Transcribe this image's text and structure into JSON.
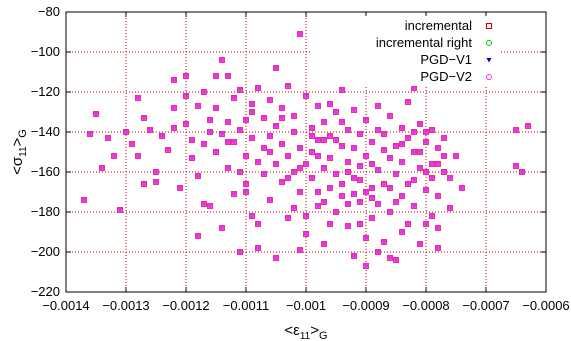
{
  "chart_data": {
    "type": "scatter",
    "title": "",
    "xlabel": {
      "base": "<ε",
      "sub": "11",
      "close": ">",
      "outer_sub": "G"
    },
    "ylabel": {
      "base": "<σ",
      "sub": "11",
      "close": ">",
      "outer_sub": "G"
    },
    "xlim": [
      -0.0014,
      -0.0006
    ],
    "ylim": [
      -220,
      -80
    ],
    "xticks": [
      -0.0014,
      -0.0013,
      -0.0012,
      -0.0011,
      -0.001,
      -0.0009,
      -0.0008,
      -0.0007,
      -0.0006
    ],
    "xtick_labels": [
      "−0.0014",
      "−0.0013",
      "−0.0012",
      "−0.0011",
      "−0.001",
      "−0.0009",
      "−0.0008",
      "−0.0007",
      "−0.0006"
    ],
    "yticks": [
      -220,
      -200,
      -180,
      -160,
      -140,
      -120,
      -100,
      -80
    ],
    "ytick_labels": [
      "−220",
      "−200",
      "−180",
      "−160",
      "−140",
      "−120",
      "−100",
      "−80"
    ],
    "grid": true,
    "legend_position": "top-right",
    "series": [
      {
        "name": "incremental",
        "color": "#cc0000",
        "marker": "square"
      },
      {
        "name": "incremental right",
        "color": "#00cc00",
        "marker": "circle"
      },
      {
        "name": "PGD−V1",
        "color": "#0000cc",
        "marker": "triangle-down"
      },
      {
        "name": "PGD−V2",
        "color": "#ff33ff",
        "marker": "square"
      }
    ],
    "note_series": "All four series overlap; points listed once as shared x/y values.",
    "points": [
      [
        -0.00137,
        -174
      ],
      [
        -0.00136,
        -141
      ],
      [
        -0.00135,
        -131
      ],
      [
        -0.00134,
        -158
      ],
      [
        -0.00133,
        -143
      ],
      [
        -0.00132,
        -152
      ],
      [
        -0.00131,
        -179
      ],
      [
        -0.0013,
        -140
      ],
      [
        -0.00129,
        -146
      ],
      [
        -0.00128,
        -123
      ],
      [
        -0.00128,
        -152
      ],
      [
        -0.00127,
        -133
      ],
      [
        -0.00126,
        -139
      ],
      [
        -0.00125,
        -165
      ],
      [
        -0.00124,
        -142
      ],
      [
        -0.00123,
        -149
      ],
      [
        -0.00122,
        -114
      ],
      [
        -0.00122,
        -138
      ],
      [
        -0.00121,
        -168
      ],
      [
        -0.0012,
        -136
      ],
      [
        -0.0012,
        -122
      ],
      [
        -0.00119,
        -144
      ],
      [
        -0.00118,
        -127
      ],
      [
        -0.00118,
        -162
      ],
      [
        -0.00117,
        -146
      ],
      [
        -0.00117,
        -120
      ],
      [
        -0.00116,
        -134
      ],
      [
        -0.00116,
        -177
      ],
      [
        -0.00115,
        -128
      ],
      [
        -0.00115,
        -150
      ],
      [
        -0.00114,
        -104
      ],
      [
        -0.00114,
        -141
      ],
      [
        -0.00114,
        -188
      ],
      [
        -0.00113,
        -112
      ],
      [
        -0.00113,
        -158
      ],
      [
        -0.00113,
        -135
      ],
      [
        -0.00112,
        -145
      ],
      [
        -0.00112,
        -123
      ],
      [
        -0.00112,
        -171
      ],
      [
        -0.00111,
        -160
      ],
      [
        -0.00111,
        -119
      ],
      [
        -0.00111,
        -139
      ],
      [
        -0.0011,
        -152
      ],
      [
        -0.0011,
        -134
      ],
      [
        -0.0011,
        -166
      ],
      [
        -0.00109,
        -126
      ],
      [
        -0.00109,
        -182
      ],
      [
        -0.00109,
        -143
      ],
      [
        -0.00108,
        -155
      ],
      [
        -0.00108,
        -118
      ],
      [
        -0.00108,
        -198
      ],
      [
        -0.00107,
        -133
      ],
      [
        -0.00107,
        -161
      ],
      [
        -0.00107,
        -148
      ],
      [
        -0.00106,
        -142
      ],
      [
        -0.00106,
        -124
      ],
      [
        -0.00106,
        -174
      ],
      [
        -0.00105,
        -156
      ],
      [
        -0.00105,
        -137
      ],
      [
        -0.00105,
        -203
      ],
      [
        -0.00104,
        -128
      ],
      [
        -0.00104,
        -146
      ],
      [
        -0.00104,
        -165
      ],
      [
        -0.00103,
        -152
      ],
      [
        -0.00103,
        -117
      ],
      [
        -0.00103,
        -183
      ],
      [
        -0.00102,
        -140
      ],
      [
        -0.00102,
        -160
      ],
      [
        -0.00102,
        -132
      ],
      [
        -0.00101,
        -91
      ],
      [
        -0.00101,
        -148
      ],
      [
        -0.00101,
        -170
      ],
      [
        -0.001,
        -156
      ],
      [
        -0.001,
        -122
      ],
      [
        -0.001,
        -191
      ],
      [
        -0.00099,
        -138
      ],
      [
        -0.00099,
        -163
      ],
      [
        -0.00099,
        -150
      ],
      [
        -0.00098,
        -144
      ],
      [
        -0.00098,
        -177
      ],
      [
        -0.00098,
        -127
      ],
      [
        -0.00097,
        -158
      ],
      [
        -0.00097,
        -135
      ],
      [
        -0.00097,
        -196
      ],
      [
        -0.00096,
        -168
      ],
      [
        -0.00096,
        -142
      ],
      [
        -0.00096,
        -153
      ],
      [
        -0.00095,
        -130
      ],
      [
        -0.00095,
        -180
      ],
      [
        -0.00095,
        -161
      ],
      [
        -0.00094,
        -147
      ],
      [
        -0.00094,
        -119
      ],
      [
        -0.00094,
        -172
      ],
      [
        -0.00093,
        -155
      ],
      [
        -0.00093,
        -139
      ],
      [
        -0.00093,
        -187
      ],
      [
        -0.00092,
        -163
      ],
      [
        -0.00092,
        -129
      ],
      [
        -0.00092,
        -148
      ],
      [
        -0.00091,
        -175
      ],
      [
        -0.00091,
        -141
      ],
      [
        -0.00091,
        -157
      ],
      [
        -0.0009,
        -207
      ],
      [
        -0.0009,
        -152
      ],
      [
        -0.0009,
        -134
      ],
      [
        -0.00089,
        -168
      ],
      [
        -0.00089,
        -183
      ],
      [
        -0.00089,
        -145
      ],
      [
        -0.00088,
        -159
      ],
      [
        -0.00088,
        -127
      ],
      [
        -0.00088,
        -176
      ],
      [
        -0.00087,
        -141
      ],
      [
        -0.00087,
        -166
      ],
      [
        -0.00087,
        -195
      ],
      [
        -0.00086,
        -153
      ],
      [
        -0.00086,
        -132
      ],
      [
        -0.00086,
        -180
      ],
      [
        -0.00085,
        -204
      ],
      [
        -0.00085,
        -147
      ],
      [
        -0.00085,
        -161
      ],
      [
        -0.00084,
        -138
      ],
      [
        -0.00084,
        -172
      ],
      [
        -0.00084,
        -155
      ],
      [
        -0.00083,
        -186
      ],
      [
        -0.00083,
        -143
      ],
      [
        -0.00083,
        -125
      ],
      [
        -0.00082,
        -164
      ],
      [
        -0.00082,
        -150
      ],
      [
        -0.00082,
        -177
      ],
      [
        -0.00081,
        -136
      ],
      [
        -0.00081,
        -158
      ],
      [
        -0.00081,
        -196
      ],
      [
        -0.0008,
        -145
      ],
      [
        -0.0008,
        -169
      ],
      [
        -0.0008,
        -140
      ],
      [
        -0.00079,
        -156
      ],
      [
        -0.00079,
        -182
      ],
      [
        -0.00079,
        -163
      ],
      [
        -0.00078,
        -148
      ],
      [
        -0.00078,
        -172
      ],
      [
        -0.00078,
        -188
      ],
      [
        -0.00077,
        -143
      ],
      [
        -0.00077,
        -160
      ],
      [
        -0.00076,
        -178
      ],
      [
        -0.00075,
        -152
      ],
      [
        -0.00074,
        -168
      ],
      [
        -0.00065,
        -139
      ],
      [
        -0.00065,
        -157
      ],
      [
        -0.00064,
        -160
      ],
      [
        -0.00063,
        -137
      ],
      [
        -0.00115,
        -112
      ],
      [
        -0.00105,
        -108
      ],
      [
        -0.00095,
        -110
      ],
      [
        -0.00085,
        -114
      ],
      [
        -0.00082,
        -118
      ],
      [
        -0.0012,
        -112
      ],
      [
        -0.0011,
        -170
      ],
      [
        -0.001,
        -182
      ],
      [
        -0.0009,
        -193
      ],
      [
        -0.0008,
        -186
      ],
      [
        -0.00125,
        -160
      ],
      [
        -0.00118,
        -192
      ],
      [
        -0.00108,
        -186
      ],
      [
        -0.00098,
        -170
      ],
      [
        -0.00088,
        -200
      ],
      [
        -0.00078,
        -198
      ],
      [
        -0.00111,
        -200
      ],
      [
        -0.00101,
        -199
      ],
      [
        -0.00096,
        -186
      ],
      [
        -0.00092,
        -202
      ],
      [
        -0.00086,
        -203
      ],
      [
        -0.00117,
        -176
      ],
      [
        -0.00106,
        -150
      ],
      [
        -0.00104,
        -133
      ],
      [
        -0.00102,
        -178
      ],
      [
        -0.00097,
        -175
      ],
      [
        -0.00093,
        -176
      ],
      [
        -0.00089,
        -156
      ],
      [
        -0.00087,
        -149
      ],
      [
        -0.00083,
        -166
      ],
      [
        -0.00081,
        -150
      ],
      [
        -0.00079,
        -139
      ],
      [
        -0.00077,
        -152
      ],
      [
        -0.00113,
        -145
      ],
      [
        -0.00109,
        -130
      ],
      [
        -0.00099,
        -142
      ],
      [
        -0.00094,
        -166
      ],
      [
        -0.00091,
        -186
      ],
      [
        -0.0009,
        -170
      ],
      [
        -0.00085,
        -175
      ],
      [
        -0.00084,
        -190
      ],
      [
        -0.00122,
        -128
      ],
      [
        -0.00127,
        -166
      ],
      [
        -0.00119,
        -153
      ],
      [
        -0.00116,
        -140
      ],
      [
        -0.00103,
        -163
      ],
      [
        -0.00101,
        -158
      ],
      [
        -0.00098,
        -152
      ],
      [
        -0.00097,
        -144
      ],
      [
        -0.00096,
        -126
      ],
      [
        -0.00095,
        -144
      ],
      [
        -0.00094,
        -135
      ],
      [
        -0.00093,
        -160
      ],
      [
        -0.00092,
        -171
      ],
      [
        -0.00091,
        -164
      ],
      [
        -0.00089,
        -173
      ],
      [
        -0.00088,
        -139
      ],
      [
        -0.00086,
        -168
      ],
      [
        -0.00084,
        -146
      ],
      [
        -0.00082,
        -140
      ],
      [
        -0.0008,
        -160
      ],
      [
        -0.00078,
        -156
      ],
      [
        -0.00076,
        -163
      ]
    ]
  }
}
